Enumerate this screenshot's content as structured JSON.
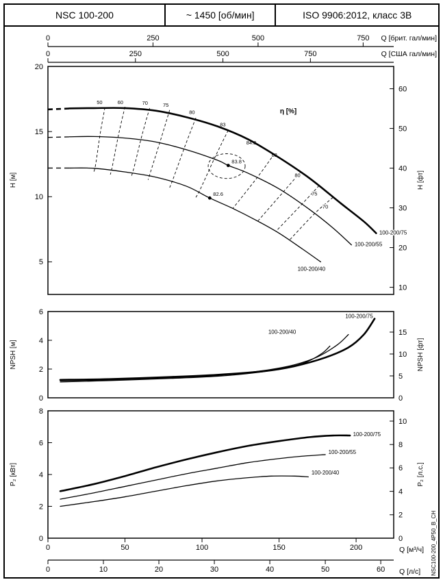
{
  "header": {
    "cells": [
      {
        "label": "NSC 100-200"
      },
      {
        "label": "~ 1450 [об/мин]"
      },
      {
        "label": "ISO 9906:2012, класс 3В"
      }
    ]
  },
  "side_label": "NSC100-200_4P50_B_CH",
  "chart_data": {
    "type": "line",
    "x": {
      "unit": "м³/ч",
      "range": [
        0,
        224.4
      ],
      "top_axes": [
        {
          "label": "Q [брит. гал/мин]",
          "ticks": [
            0,
            250,
            500,
            750
          ],
          "to_m3h": 0.27276
        },
        {
          "label": "Q [США гал/мин]",
          "ticks": [
            0,
            250,
            500,
            750
          ],
          "to_m3h": 0.22712
        }
      ],
      "bottom_axes": [
        {
          "label": "Q [м³/ч]",
          "ticks": [
            0,
            50,
            100,
            150,
            200
          ],
          "to_m3h": 1
        },
        {
          "label": "Q [л/с]",
          "ticks": [
            0,
            10,
            20,
            30,
            40,
            50,
            60
          ],
          "to_m3h": 3.6
        }
      ]
    },
    "panels": [
      {
        "name": "head-curves",
        "y_left": {
          "label": "H [м]",
          "ticks": [
            5,
            10,
            15,
            20
          ],
          "range": [
            2.5,
            20
          ]
        },
        "y_right": {
          "label": "H [фт]",
          "ticks": [
            10,
            20,
            30,
            40,
            50,
            60
          ],
          "to_left": 0.3048
        },
        "eta_label": {
          "text": "η [%]",
          "at": [
            156,
            16.4
          ]
        },
        "eff_contours": [
          {
            "label": "50",
            "label_at": [
              33.5,
              17.1
            ],
            "points": [
              [
                37,
                16.85
              ],
              [
                34,
                14.9
              ],
              [
                31,
                12.5
              ],
              [
                29.5,
                11.8
              ]
            ]
          },
          {
            "label": "60",
            "label_at": [
              47,
              17.1
            ],
            "points": [
              [
                50,
                16.9
              ],
              [
                46,
                14.85
              ],
              [
                42,
                12.45
              ],
              [
                40.5,
                11.7
              ]
            ]
          },
          {
            "label": "70",
            "label_at": [
              63,
              17.05
            ],
            "points": [
              [
                66,
                16.8
              ],
              [
                61,
                14.7
              ],
              [
                56,
                12.3
              ],
              [
                54,
                11.5
              ]
            ]
          },
          {
            "label": "75",
            "label_at": [
              76.5,
              16.9
            ],
            "points": [
              [
                79,
                16.65
              ],
              [
                73.5,
                14.5
              ],
              [
                67,
                12.05
              ],
              [
                65,
                11.3
              ]
            ]
          },
          {
            "label": "80",
            "label_at": [
              93.5,
              16.35
            ],
            "points": [
              [
                96,
                16.05
              ],
              [
                89,
                13.9
              ],
              [
                81.5,
                11.45
              ],
              [
                79,
                10.7
              ]
            ]
          },
          {
            "label": "83",
            "label_at": [
              113.5,
              15.4
            ],
            "points": [
              [
                117,
                15.1
              ],
              [
                108.5,
                13.05
              ],
              [
                99,
                10.6
              ],
              [
                96,
                9.95
              ]
            ]
          },
          {
            "label": "84.3",
            "label_at": [
              132,
              14.0
            ],
            "points": []
          },
          {
            "label": "83",
            "label_at": [
              147,
              13.05
            ],
            "points": [
              [
                147,
                13.3
              ],
              [
                136,
                11.5
              ],
              [
                120,
                9.1
              ]
            ]
          },
          {
            "label": "80",
            "label_at": [
              162,
              11.5
            ],
            "points": [
              [
                164,
                11.9
              ],
              [
                153,
                10.4
              ],
              [
                136,
                8.1
              ]
            ]
          },
          {
            "label": "75",
            "label_at": [
              173,
              10.1
            ],
            "points": [
              [
                176,
                10.85
              ],
              [
                165,
                9.45
              ],
              [
                148,
                7.35
              ]
            ]
          },
          {
            "label": "70",
            "label_at": [
              180,
              9.1
            ],
            "points": [
              [
                185,
                9.95
              ],
              [
                173,
                8.7
              ],
              [
                157,
                6.7
              ]
            ]
          }
        ],
        "eff_loop": {
          "center": [
            116,
            12.35
          ],
          "rx": 12,
          "ry": 0.95
        },
        "markers": [
          {
            "at": [
              117,
              12.4
            ],
            "label": "83.8"
          },
          {
            "at": [
              105,
              9.9
            ],
            "label": "82.6"
          }
        ],
        "curves": [
          {
            "name": "100-200/75",
            "bold": true,
            "prefix": [
              [
                0,
                16.7
              ],
              [
                16,
                16.78
              ]
            ],
            "points": [
              [
                14,
                16.78
              ],
              [
                30,
                16.8
              ],
              [
                50,
                16.8
              ],
              [
                70,
                16.6
              ],
              [
                90,
                16.1
              ],
              [
                110,
                15.4
              ],
              [
                130,
                14.4
              ],
              [
                150,
                13.0
              ],
              [
                170,
                11.4
              ],
              [
                190,
                9.5
              ],
              [
                205,
                8.1
              ],
              [
                213,
                7.2
              ]
            ],
            "label_at": [
              215,
              7.1
            ]
          },
          {
            "name": "100-200/55",
            "bold": false,
            "prefix": [
              [
                0,
                14.55
              ],
              [
                16,
                14.6
              ]
            ],
            "points": [
              [
                14,
                14.6
              ],
              [
                30,
                14.62
              ],
              [
                50,
                14.5
              ],
              [
                70,
                14.2
              ],
              [
                90,
                13.6
              ],
              [
                110,
                12.8
              ],
              [
                117,
                12.4
              ],
              [
                130,
                11.8
              ],
              [
                150,
                10.6
              ],
              [
                170,
                9.0
              ],
              [
                185,
                7.6
              ],
              [
                197,
                6.3
              ]
            ],
            "label_at": [
              199,
              6.2
            ]
          },
          {
            "name": "100-200/40",
            "bold": false,
            "prefix": [
              [
                0,
                12.2
              ],
              [
                16,
                12.2
              ]
            ],
            "points": [
              [
                14,
                12.2
              ],
              [
                30,
                12.18
              ],
              [
                50,
                11.9
              ],
              [
                70,
                11.5
              ],
              [
                90,
                10.8
              ],
              [
                105,
                9.9
              ],
              [
                120,
                9.1
              ],
              [
                135,
                8.2
              ],
              [
                150,
                7.2
              ],
              [
                165,
                6.0
              ],
              [
                177,
                5.0
              ]
            ],
            "label_at": [
              162,
              4.3
            ]
          }
        ]
      },
      {
        "name": "npsh",
        "y_left": {
          "label": "NPSH [м]",
          "ticks": [
            0,
            2,
            4,
            6
          ],
          "range": [
            0,
            6
          ]
        },
        "y_right": {
          "label": "NPSH [фт]",
          "ticks": [
            0,
            5,
            10,
            15
          ],
          "to_left": 0.3048
        },
        "curves": [
          {
            "name": "100-200/75",
            "bold": true,
            "points": [
              [
                8,
                1.25
              ],
              [
                40,
                1.3
              ],
              [
                80,
                1.45
              ],
              [
                110,
                1.6
              ],
              [
                140,
                1.85
              ],
              [
                160,
                2.2
              ],
              [
                180,
                2.8
              ],
              [
                195,
                3.5
              ],
              [
                205,
                4.4
              ],
              [
                212,
                5.5
              ]
            ],
            "label_at": [
              193,
              5.55
            ]
          },
          {
            "name": "100-200/55",
            "bold": false,
            "points": [
              [
                8,
                1.18
              ],
              [
                40,
                1.25
              ],
              [
                80,
                1.4
              ],
              [
                110,
                1.55
              ],
              [
                140,
                1.9
              ],
              [
                160,
                2.3
              ],
              [
                175,
                2.85
              ],
              [
                188,
                3.7
              ],
              [
                195,
                4.4
              ]
            ],
            "label_at": null
          },
          {
            "name": "100-200/40",
            "bold": false,
            "points": [
              [
                8,
                1.1
              ],
              [
                40,
                1.2
              ],
              [
                80,
                1.35
              ],
              [
                110,
                1.5
              ],
              [
                135,
                1.75
              ],
              [
                155,
                2.1
              ],
              [
                168,
                2.5
              ],
              [
                178,
                3.1
              ],
              [
                183,
                3.6
              ]
            ],
            "label_at": [
              143,
              4.45
            ]
          }
        ]
      },
      {
        "name": "power",
        "y_left": {
          "label": "P₂ [кВт]",
          "ticks": [
            0,
            2,
            4,
            6,
            8
          ],
          "range": [
            0,
            8
          ]
        },
        "y_right": {
          "label": "P₂ [л.с.]",
          "ticks": [
            0,
            2,
            4,
            6,
            8,
            10
          ],
          "to_left": 0.73549
        },
        "curves": [
          {
            "name": "100-200/75",
            "bold": true,
            "points": [
              [
                8,
                2.95
              ],
              [
                30,
                3.4
              ],
              [
                50,
                3.9
              ],
              [
                70,
                4.45
              ],
              [
                90,
                4.95
              ],
              [
                110,
                5.4
              ],
              [
                130,
                5.8
              ],
              [
                150,
                6.1
              ],
              [
                170,
                6.35
              ],
              [
                185,
                6.45
              ],
              [
                196,
                6.45
              ]
            ],
            "label_at": [
              198,
              6.4
            ]
          },
          {
            "name": "100-200/55",
            "bold": false,
            "points": [
              [
                8,
                2.45
              ],
              [
                30,
                2.85
              ],
              [
                50,
                3.25
              ],
              [
                70,
                3.65
              ],
              [
                90,
                4.05
              ],
              [
                110,
                4.4
              ],
              [
                130,
                4.75
              ],
              [
                150,
                5.0
              ],
              [
                165,
                5.15
              ],
              [
                180,
                5.25
              ]
            ],
            "label_at": [
              182,
              5.3
            ]
          },
          {
            "name": "100-200/40",
            "bold": false,
            "points": [
              [
                8,
                2.0
              ],
              [
                30,
                2.3
              ],
              [
                50,
                2.6
              ],
              [
                70,
                2.95
              ],
              [
                90,
                3.3
              ],
              [
                110,
                3.6
              ],
              [
                130,
                3.8
              ],
              [
                145,
                3.9
              ],
              [
                160,
                3.9
              ],
              [
                169,
                3.85
              ]
            ],
            "label_at": [
              171,
              4.0
            ]
          }
        ]
      }
    ]
  }
}
